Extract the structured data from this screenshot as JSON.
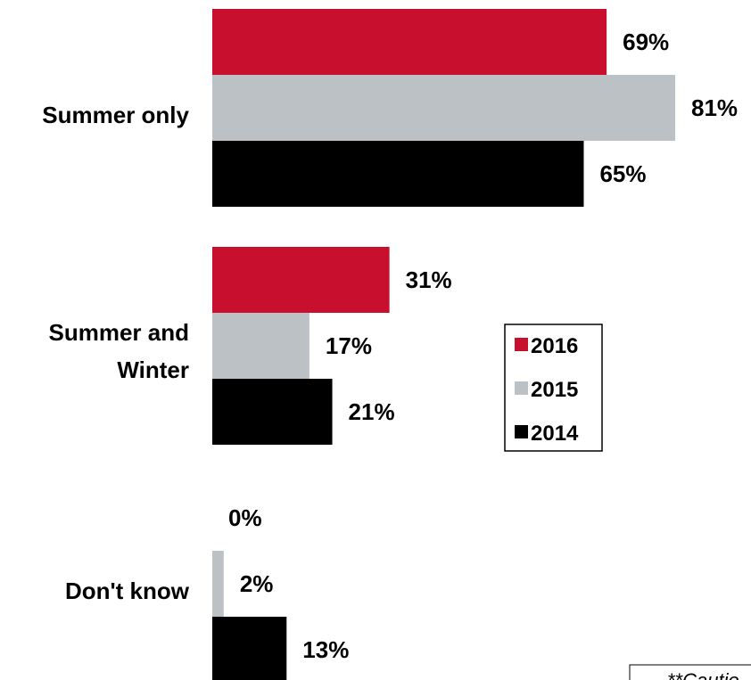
{
  "chart_data": {
    "type": "bar",
    "orientation": "horizontal",
    "categories": [
      "Summer only",
      "Summer and Winter",
      "Don't know"
    ],
    "category_label_lines": [
      [
        "Summer only"
      ],
      [
        "Summer and",
        "Winter"
      ],
      [
        "Don't know"
      ]
    ],
    "series": [
      {
        "name": "2016",
        "color": "#c8102e",
        "values": [
          69,
          31,
          0
        ]
      },
      {
        "name": "2015",
        "color": "#bcc1c6",
        "values": [
          81,
          17,
          2
        ]
      },
      {
        "name": "2014",
        "color": "#000000",
        "values": [
          65,
          21,
          13
        ]
      }
    ],
    "value_suffix": "%",
    "xlim": [
      0,
      100
    ],
    "legend": {
      "placement": "center-right",
      "entries": [
        "2016",
        "2015",
        "2014"
      ]
    },
    "footnote": "**Cautio",
    "grid": false
  }
}
